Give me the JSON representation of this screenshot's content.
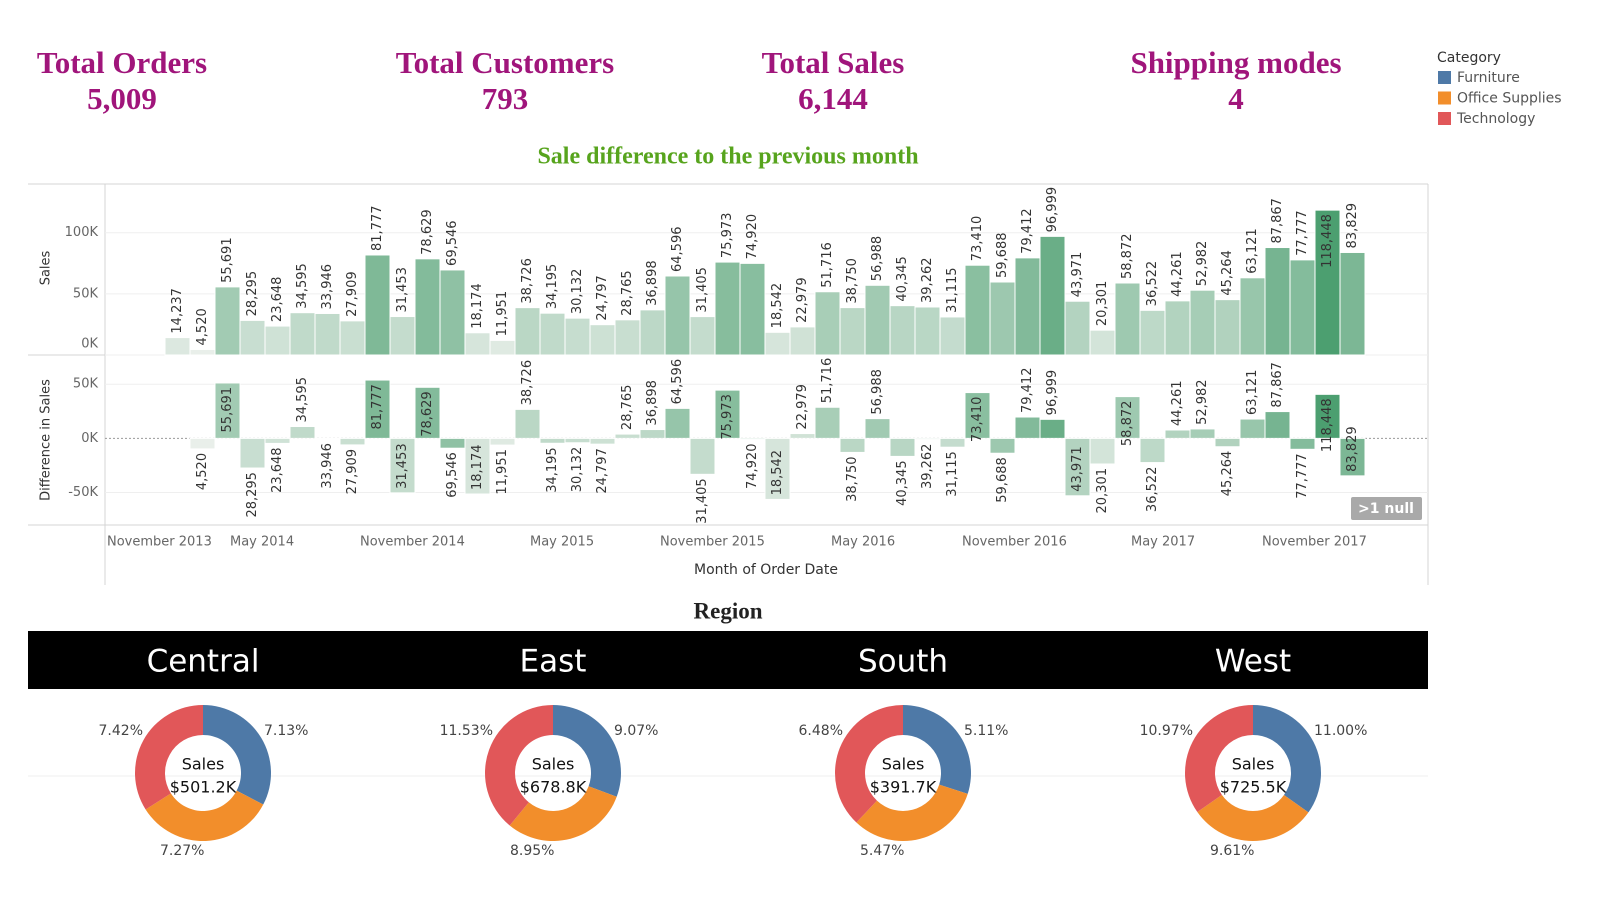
{
  "kpis": [
    {
      "label": "Total Orders",
      "value": "5,009"
    },
    {
      "label": "Total Customers",
      "value": "793"
    },
    {
      "label": "Total Sales",
      "value": "6,144"
    },
    {
      "label": "Shipping modes",
      "value": "4"
    }
  ],
  "legend": {
    "title": "Category",
    "items": [
      {
        "name": "Furniture",
        "color": "#4e79a7"
      },
      {
        "name": "Office Supplies",
        "color": "#f28e2b"
      },
      {
        "name": "Technology",
        "color": "#e15759"
      }
    ]
  },
  "region_title": "Region",
  "chart_data": [
    {
      "type": "bar",
      "title": "Sale difference to the previous month",
      "y_label": "Sales",
      "values": [
        14237,
        4520,
        55691,
        28295,
        23648,
        34595,
        33946,
        27909,
        81777,
        31453,
        78629,
        69546,
        18174,
        11951,
        38726,
        34195,
        30132,
        24797,
        28765,
        36898,
        64596,
        31405,
        75973,
        74920,
        18542,
        22979,
        51716,
        38750,
        56988,
        40345,
        39262,
        31115,
        73410,
        59688,
        79412,
        96999,
        43971,
        20301,
        58872,
        36522,
        44261,
        52982,
        45264,
        63121,
        87867,
        77777,
        118448,
        83829
      ],
      "value_labels": [
        "14,237",
        "4,520",
        "55,691",
        "28,295",
        "23,648",
        "34,595",
        "33,946",
        "27,909",
        "81,777",
        "31,453",
        "78,629",
        "69,546",
        "18,174",
        "11,951",
        "38,726",
        "34,195",
        "30,132",
        "24,797",
        "28,765",
        "36,898",
        "64,596",
        "31,405",
        "75,973",
        "74,920",
        "18,542",
        "22,979",
        "51,716",
        "38,750",
        "56,988",
        "40,345",
        "39,262",
        "31,115",
        "73,410",
        "59,688",
        "79,412",
        "96,999",
        "43,971",
        "20,301",
        "58,872",
        "36,522",
        "44,261",
        "52,982",
        "45,264",
        "63,121",
        "87,867",
        "77,777",
        "118,448",
        "83,829"
      ],
      "color_range": [
        "#e9efea",
        "#4c9f70"
      ],
      "ylim": [
        0,
        139000
      ],
      "yticks": [
        {
          "value": 0,
          "label": "0K"
        },
        {
          "value": 50000,
          "label": "50K"
        },
        {
          "value": 100000,
          "label": "100K"
        }
      ],
      "grid": true
    },
    {
      "type": "diffbar",
      "y_label": "Difference in Sales",
      "x_label": "Month of Order Date",
      "x_tick_labels": [
        "November 2013",
        "May 2014",
        "November 2014",
        "May 2015",
        "November 2015",
        "May 2016",
        "November 2016",
        "May 2017",
        "November 2017"
      ],
      "values": [
        null,
        -9717,
        51171,
        -27396,
        -4647,
        10947,
        -649,
        -6037,
        53868,
        -50324,
        47176,
        -9083,
        -51372,
        -6223,
        26775,
        -4531,
        -4063,
        -5335,
        3968,
        8133,
        27698,
        -33191,
        44568,
        -1053,
        -56378,
        4437,
        28737,
        -12966,
        18238,
        -16643,
        -1083,
        -8147,
        42295,
        -13722,
        19724,
        17587,
        -53028,
        -23670,
        38571,
        -22350,
        7739,
        8721,
        -7718,
        17857,
        24746,
        -10090,
        40671,
        -34619
      ],
      "null_indicator": ">1 null",
      "ylim": [
        -80000,
        77000
      ],
      "yticks": [
        {
          "value": -50000,
          "label": "-50K"
        },
        {
          "value": 0,
          "label": "0K"
        },
        {
          "value": 50000,
          "label": "50K"
        }
      ],
      "grid": true
    },
    {
      "type": "donut",
      "title": "Central",
      "values": [
        7.13,
        7.27,
        7.42
      ],
      "value_labels": [
        "7.13%",
        "7.27%",
        "7.42%"
      ],
      "center_label": "Sales",
      "total": "$501.2K"
    },
    {
      "type": "donut",
      "title": "East",
      "values": [
        9.07,
        8.95,
        11.53
      ],
      "value_labels": [
        "9.07%",
        "8.95%",
        "11.53%"
      ],
      "center_label": "Sales",
      "total": "$678.8K"
    },
    {
      "type": "donut",
      "title": "South",
      "values": [
        5.11,
        5.47,
        6.48
      ],
      "value_labels": [
        "5.11%",
        "5.47%",
        "6.48%"
      ],
      "center_label": "Sales",
      "total": "$391.7K"
    },
    {
      "type": "donut",
      "title": "West",
      "values": [
        11.0,
        9.61,
        10.97
      ],
      "value_labels": [
        "11.00%",
        "9.61%",
        "10.97%"
      ],
      "center_label": "Sales",
      "total": "$725.5K"
    }
  ]
}
